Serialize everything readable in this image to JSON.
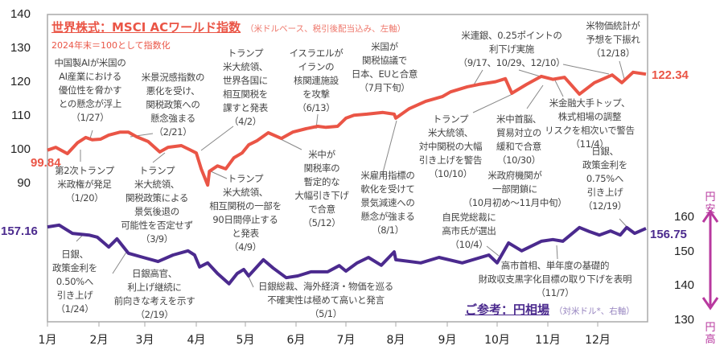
{
  "chart_data": {
    "type": "line",
    "x_tick_labels": [
      "1月",
      "2月",
      "3月",
      "4月",
      "5月",
      "6月",
      "7月",
      "8月",
      "9月",
      "10月",
      "11月",
      "12月"
    ],
    "left_axis": {
      "ticks": [
        90,
        100,
        110,
        120,
        130,
        140
      ]
    },
    "right_axis": {
      "ticks": [
        130,
        140,
        150,
        160
      ]
    },
    "grid": false,
    "colors": {
      "msci": "#ea5546",
      "yen": "#4b2a8e",
      "yen_arrow": "#b8399f"
    },
    "series": [
      {
        "name": "世界株式：MSCI ACワールド指数",
        "axis": "left",
        "start_label": "99.84",
        "end_label": "122.34",
        "x": [
          "1/1",
          "1/6",
          "1/13",
          "1/19",
          "1/24",
          "1/28",
          "2/2",
          "2/7",
          "2/14",
          "2/19",
          "2/24",
          "3/3",
          "3/10",
          "3/15",
          "3/23",
          "3/28",
          "4/1",
          "4/4",
          "4/8",
          "4/9",
          "4/14",
          "4/19",
          "4/24",
          "4/29",
          "5/3",
          "5/8",
          "5/15",
          "5/23",
          "5/30",
          "6/7",
          "6/14",
          "6/19",
          "6/26",
          "7/1",
          "7/6",
          "7/14",
          "7/24",
          "7/31",
          "8/1",
          "8/9",
          "8/19",
          "8/29",
          "9/3",
          "9/13",
          "9/20",
          "9/30",
          "10/6",
          "10/10",
          "10/19",
          "10/28",
          "11/4",
          "11/11",
          "11/20",
          "11/29",
          "12/10",
          "12/16",
          "12/23",
          "12/31"
        ],
        "values": [
          99.84,
          100.7,
          98.8,
          102,
          103.6,
          102.9,
          103.1,
          104.3,
          105.2,
          105.2,
          103.8,
          102.4,
          99.3,
          100.7,
          101.2,
          100,
          99,
          94.3,
          89.5,
          93.6,
          95.2,
          94.3,
          97.6,
          99,
          101.4,
          102.6,
          105,
          103.3,
          105.2,
          106.2,
          106.9,
          106.6,
          106.9,
          109.3,
          110.2,
          110.5,
          111,
          110.5,
          109.3,
          112.1,
          114.3,
          115.7,
          117.1,
          118.6,
          119.3,
          120.1,
          121,
          116.7,
          119.3,
          121.7,
          120.8,
          121.4,
          116.4,
          119.8,
          122.1,
          119.8,
          122.9,
          122.34
        ]
      },
      {
        "name": "ご参考：円相場",
        "axis": "right",
        "start_label": "157.16",
        "end_label": "156.75",
        "x": [
          "1/1",
          "1/8",
          "1/16",
          "1/26",
          "1/31",
          "2/7",
          "2/12",
          "2/19",
          "2/28",
          "3/9",
          "3/18",
          "3/27",
          "3/31",
          "4/3",
          "4/8",
          "4/14",
          "4/21",
          "4/26",
          "4/30",
          "5/3",
          "5/12",
          "5/18",
          "5/26",
          "6/2",
          "6/10",
          "6/20",
          "6/27",
          "7/1",
          "7/8",
          "7/15",
          "7/23",
          "7/31",
          "8/1",
          "8/16",
          "8/27",
          "9/10",
          "9/26",
          "10/1",
          "10/8",
          "10/16",
          "10/28",
          "11/4",
          "11/10",
          "11/20",
          "11/26",
          "12/2",
          "12/9",
          "12/15",
          "12/19",
          "12/24",
          "12/31"
        ],
        "values": [
          157.16,
          157.7,
          155.3,
          154.8,
          154.2,
          151.3,
          153.7,
          149.5,
          148.3,
          147.1,
          149,
          150.2,
          149,
          145.5,
          146.7,
          143.6,
          140.6,
          143.6,
          144.8,
          142.9,
          147.6,
          145.2,
          142.4,
          142.9,
          144.1,
          144.1,
          145.9,
          144.3,
          146.7,
          148.3,
          146,
          149.9,
          147.6,
          146.7,
          148.3,
          146.7,
          149,
          146.7,
          152.5,
          150.2,
          153,
          153.5,
          153,
          157,
          155.8,
          154.8,
          156,
          154.8,
          157,
          155.3,
          156.75
        ]
      }
    ]
  },
  "titles": {
    "msci_title": "世界株式：MSCI ACワールド指数",
    "msci_suffix": "（米ドルベース、税引後配当込み、左軸）",
    "msci_subtitle": "2024年末＝100として指数化",
    "yen_title": "ご参考：円相場",
    "yen_suffix": "（対米ドル*、右軸）",
    "yen_weak": "円安",
    "yen_strong": "円高"
  },
  "annotations": [
    "中国製AIが米国の\nAI産業における\n優位性を脅かす\nとの懸念が浮上\n（1/27）",
    "米景況感指数の\n悪化を受け、\n関税政策への\n懸念強まる\n（2/21）",
    "トランプ\n米大統領、\n世界各国に\n相互関税を\n課すと発表\n（4/2）",
    "イスラエルが\nイランの\n核関連施設\nを攻撃\n（6/13）",
    "米国が\n関税協議で\n日本、EUと合意\n（7月下旬）",
    "米連銀、0.25ポイントの\n利下げ実施\n（9/17、10/29、12/10）",
    "米物価統計が\n予想を下振れ\n（12/18）",
    "第2次トランプ\n米政権が発足\n（1/20）",
    "トランプ\n米大統領、\n関税政策による\n景気後退の\n可能性を否定せず\n（3/9）",
    "トランプ\n米大統領、\n相互関税の一部を\n90日間停止する\nと発表\n（4/9）",
    "米中が\n関税率の\n暫定的な\n大幅引き下げ\nで合意\n（5/12）",
    "米雇用指標の\n軟化を受けて\n景気減速への\n懸念が強まる\n（8/1）",
    "トランプ\n米大統領、\n対中関税の大幅\n引き上げを警告\n（10/10）",
    "米中首脳、\n貿易対立の\n緩和で合意\n（10/30）",
    "米金融大手トップ、\n株式相場の調整\nリスクを相次いで警告\n（11/4）",
    "米政府機関が\n一部閉鎖に\n（10月初め～11月中旬）",
    "日銀、\n政策金利を\n0.75%へ\n引き上げ\n（12/19）",
    "自民党総裁に\n高市氏が選出\n（10/4）",
    "高市首相、単年度の基礎的\n財政収支黒字化目標の取り下げを表明\n（11/7）",
    "日銀、\n政策金利を\n0.50%へ\n引き上げ\n（1/24）",
    "日銀高官、\n利上げ継続に\n前向きな考えを示す\n（2/19）",
    "日銀総裁、海外経済・物価を巡る\n不確実性は極めて高いと発言\n（5/1）"
  ]
}
